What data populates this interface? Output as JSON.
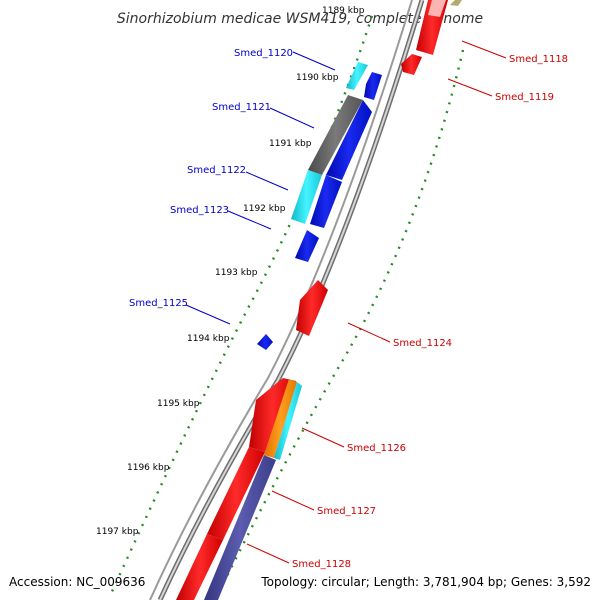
{
  "title": "Sinorhizobium medicae WSM419, complete genome",
  "accession": "Accession: NC_009636",
  "summary": "Topology: circular; Length: 3,781,904 bp; Genes: 3,592",
  "colors": {
    "forward_cds": "#0a14e6",
    "reverse_cds": "#f01414",
    "forward_label": "#0000cc",
    "reverse_label": "#cc0000",
    "backbone": "#999999",
    "tick": "#228b22",
    "rna_cyan": "#22e0ee",
    "gray_feature": "#666666",
    "purple_feature": "#4b4ba0",
    "orange_feature": "#ff8c00",
    "olive_feature": "#b0aa70"
  },
  "scale_labels": [
    "1189 kbp",
    "1190 kbp",
    "1191 kbp",
    "1192 kbp",
    "1193 kbp",
    "1194 kbp",
    "1195 kbp",
    "1196 kbp",
    "1197 kbp"
  ],
  "genes": {
    "forward": [
      "Smed_1120",
      "Smed_1121",
      "Smed_1122",
      "Smed_1123",
      "Smed_1125"
    ],
    "reverse": [
      "Smed_1118",
      "Smed_1119",
      "Smed_1124",
      "Smed_1126",
      "Smed_1127",
      "Smed_1128"
    ]
  }
}
